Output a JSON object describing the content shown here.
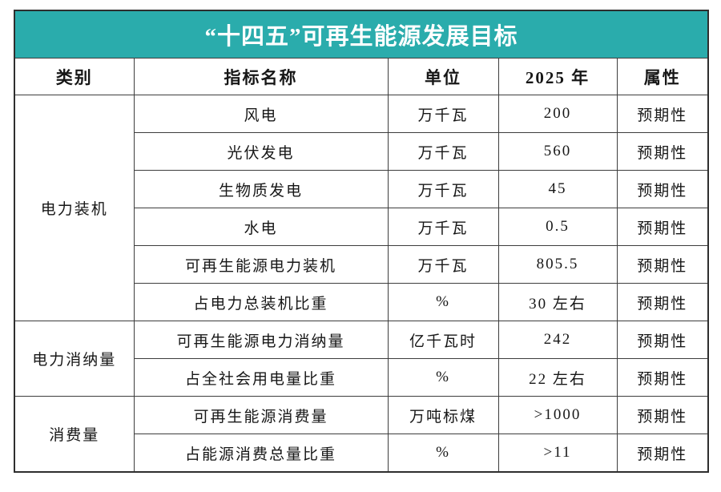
{
  "title": "“十四五”可再生能源发展目标",
  "colors": {
    "title_bg": "#2aacac",
    "title_text": "#ffffff",
    "border": "#3d3d3d",
    "body_text": "#171717"
  },
  "table": {
    "columns": [
      "类别",
      "指标名称",
      "单位",
      "2025 年",
      "属性"
    ],
    "groups": [
      {
        "category": "电力装机",
        "rows": [
          {
            "indicator": "风电",
            "unit": "万千瓦",
            "value_2025": "200",
            "attribute": "预期性"
          },
          {
            "indicator": "光伏发电",
            "unit": "万千瓦",
            "value_2025": "560",
            "attribute": "预期性"
          },
          {
            "indicator": "生物质发电",
            "unit": "万千瓦",
            "value_2025": "45",
            "attribute": "预期性"
          },
          {
            "indicator": "水电",
            "unit": "万千瓦",
            "value_2025": "0.5",
            "attribute": "预期性"
          },
          {
            "indicator": "可再生能源电力装机",
            "unit": "万千瓦",
            "value_2025": "805.5",
            "attribute": "预期性"
          },
          {
            "indicator": "占电力总装机比重",
            "unit": "%",
            "value_2025": "30 左右",
            "attribute": "预期性"
          }
        ]
      },
      {
        "category": "电力消纳量",
        "rows": [
          {
            "indicator": "可再生能源电力消纳量",
            "unit": "亿千瓦时",
            "value_2025": "242",
            "attribute": "预期性"
          },
          {
            "indicator": "占全社会用电量比重",
            "unit": "%",
            "value_2025": "22 左右",
            "attribute": "预期性"
          }
        ]
      },
      {
        "category": "消费量",
        "rows": [
          {
            "indicator": "可再生能源消费量",
            "unit": "万吨标煤",
            "value_2025": ">1000",
            "attribute": "预期性"
          },
          {
            "indicator": "占能源消费总量比重",
            "unit": "%",
            "value_2025": ">11",
            "attribute": "预期性"
          }
        ]
      }
    ]
  }
}
